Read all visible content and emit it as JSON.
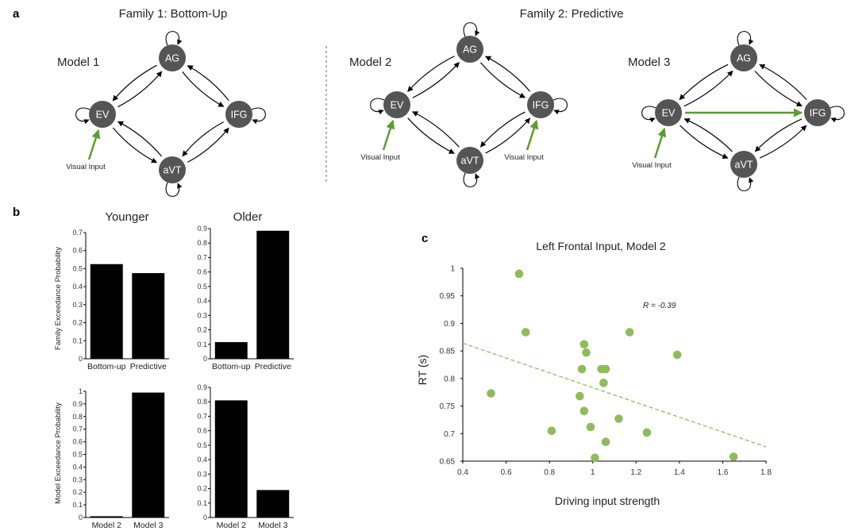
{
  "panel_a": {
    "letter": "a",
    "family1_title": "Family 1: Bottom-Up",
    "family2_title": "Family 2: Predictive",
    "visual_input": "Visual Input",
    "models": [
      {
        "label": "Model 1",
        "nodes": [
          "AG",
          "EV",
          "IFG",
          "aVT"
        ],
        "inputs": [
          "EV"
        ],
        "ev_ifg": false
      },
      {
        "label": "Model 2",
        "nodes": [
          "AG",
          "EV",
          "IFG",
          "aVT"
        ],
        "inputs": [
          "EV",
          "IFG"
        ],
        "ev_ifg": false
      },
      {
        "label": "Model 3",
        "nodes": [
          "AG",
          "EV",
          "IFG",
          "aVT"
        ],
        "inputs": [
          "EV"
        ],
        "ev_ifg": true
      }
    ],
    "node_color": "#555555",
    "input_color": "#5a9e2f"
  },
  "panel_b": {
    "letter": "b",
    "col_titles": [
      "Younger",
      "Older"
    ],
    "row_ylabels": [
      "Family Exceedance Probability",
      "Model Exceedance Probability"
    ],
    "bar_color": "#000000"
  },
  "panel_c": {
    "letter": "c",
    "point_color": "#8fbc5a",
    "line_color": "#8fbc5a"
  },
  "chart_data": [
    {
      "type": "bar",
      "title": "Younger",
      "ylabel": "Family Exceedance Probability",
      "categories": [
        "Bottom-up",
        "Predictive"
      ],
      "values": [
        0.525,
        0.475
      ],
      "ylim": [
        0,
        0.7
      ],
      "yticks": [
        "0",
        "0.1",
        "0.2",
        "0.3",
        "0.4",
        "0.5",
        "0.6",
        "0.7"
      ]
    },
    {
      "type": "bar",
      "title": "Older",
      "ylabel": "",
      "categories": [
        "Bottom-up",
        "Predictive"
      ],
      "values": [
        0.115,
        0.885
      ],
      "ylim": [
        0,
        0.9
      ],
      "yticks": [
        "0",
        "0.1",
        "0.2",
        "0.3",
        "0.4",
        "0.5",
        "0.6",
        "0.7",
        "0.8",
        "0.9"
      ]
    },
    {
      "type": "bar",
      "title": "",
      "ylabel": "Model Exceedance Probability",
      "categories": [
        "Model 2",
        "Model 3"
      ],
      "values": [
        0.01,
        0.99
      ],
      "ylim": [
        0,
        1
      ],
      "yticks": [
        "0",
        "0.1",
        "0.2",
        "0.3",
        "0.4",
        "0.5",
        "0.6",
        "0.7",
        "0.8",
        "0.9",
        "1"
      ]
    },
    {
      "type": "bar",
      "title": "",
      "ylabel": "",
      "categories": [
        "Model 2",
        "Model 3"
      ],
      "values": [
        0.81,
        0.19
      ],
      "ylim": [
        0,
        0.9
      ],
      "yticks": [
        "0",
        "0.1",
        "0.2",
        "0.3",
        "0.4",
        "0.5",
        "0.6",
        "0.7",
        "0.8",
        "0.9"
      ]
    },
    {
      "type": "scatter",
      "title": "Left Frontal Input, Model 2",
      "xlabel": "Driving input strength",
      "ylabel": "RT (s)",
      "annotation": "R = -0.39",
      "xlim": [
        0.4,
        1.8
      ],
      "ylim": [
        0.65,
        1
      ],
      "xticks": [
        "0.4",
        "0.6",
        "0.8",
        "1",
        "1.2",
        "1.4",
        "1.6",
        "1.8"
      ],
      "yticks": [
        "0.65",
        "0.7",
        "0.75",
        "0.8",
        "0.85",
        "0.9",
        "0.95",
        "1"
      ],
      "x": [
        0.53,
        0.66,
        0.69,
        0.81,
        0.94,
        0.95,
        0.96,
        0.96,
        0.97,
        0.99,
        1.01,
        1.04,
        1.05,
        1.06,
        1.06,
        1.12,
        1.17,
        1.25,
        1.39,
        1.65
      ],
      "y": [
        0.773,
        0.99,
        0.884,
        0.705,
        0.768,
        0.817,
        0.741,
        0.862,
        0.847,
        0.712,
        0.656,
        0.817,
        0.792,
        0.817,
        0.685,
        0.727,
        0.884,
        0.702,
        0.843,
        0.658
      ],
      "trendline": {
        "x": [
          0.4,
          1.8
        ],
        "y": [
          0.864,
          0.676
        ]
      }
    }
  ]
}
